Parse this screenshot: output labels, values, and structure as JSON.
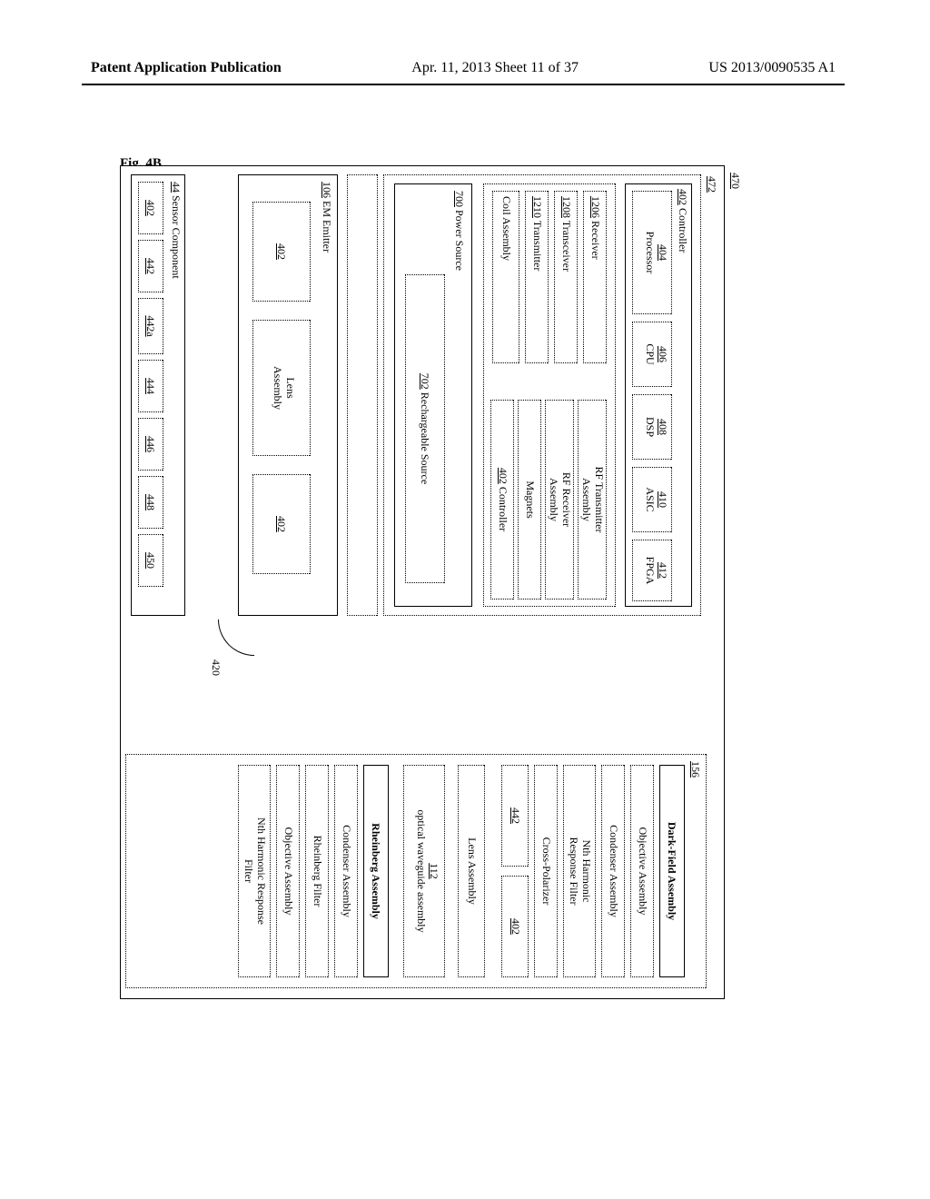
{
  "header": {
    "left": "Patent Application Publication",
    "center": "Apr. 11, 2013  Sheet 11 of 37",
    "right": "US 2013/0090535 A1"
  },
  "figure_label": "Fig. 4B",
  "refs": {
    "r470": "470",
    "r472": "472",
    "r156": "156",
    "r420": "420"
  },
  "controller": {
    "title_num": "402",
    "title": "Controller",
    "proc_num": "404",
    "proc": "Processor",
    "cpu_num": "406",
    "cpu": "CPU",
    "dsp_num": "408",
    "dsp": "DSP",
    "asic_num": "410",
    "asic": "ASIC",
    "fpga_num": "412",
    "fpga": "FPGA"
  },
  "rf": {
    "recv_num": "1206",
    "recv": "Receiver",
    "xcvr_num": "1208",
    "xcvr": "Transceiver",
    "xmit_num": "1210",
    "xmit": "Transmitter",
    "coil": "Coil Assembly",
    "rf_tx": "RF Transmitter\nAssembly",
    "rf_rx": "RF Receiver\nAssembly",
    "magnets": "Magnets",
    "ctrl2_num": "402",
    "ctrl2": "Controller"
  },
  "power": {
    "num": "700",
    "label": "Power Source",
    "rech_num": "702",
    "rech": "Rechargeable Source"
  },
  "em": {
    "num": "106",
    "label": "EM Emitter",
    "b1": "402",
    "lens": "Lens\nAssembly",
    "b3": "402"
  },
  "sensor": {
    "num": "44",
    "label": "Sensor Component",
    "s1": "402",
    "s2": "442",
    "s3": "442a",
    "s4": "444",
    "s5": "446",
    "s6": "448",
    "s7": "450"
  },
  "right": {
    "dark": "Dark-Field Assembly",
    "obj": "Objective Assembly",
    "cond": "Condenser Assembly",
    "nth": "Nth Harmonic\nResponse Filter",
    "cross": "Cross-Polarizer",
    "p442": "442",
    "p402": "402",
    "lens": "Lens Assembly",
    "r112": "112",
    "owa": "optical waveguide assembly",
    "rhein": "Rheinberg Assembly",
    "cond2": "Condenser Assembly",
    "rfilt": "Rheinberg Filter",
    "obj2": "Objective Assembly",
    "nth2": "Nth Harmonic Response\nFilter"
  }
}
